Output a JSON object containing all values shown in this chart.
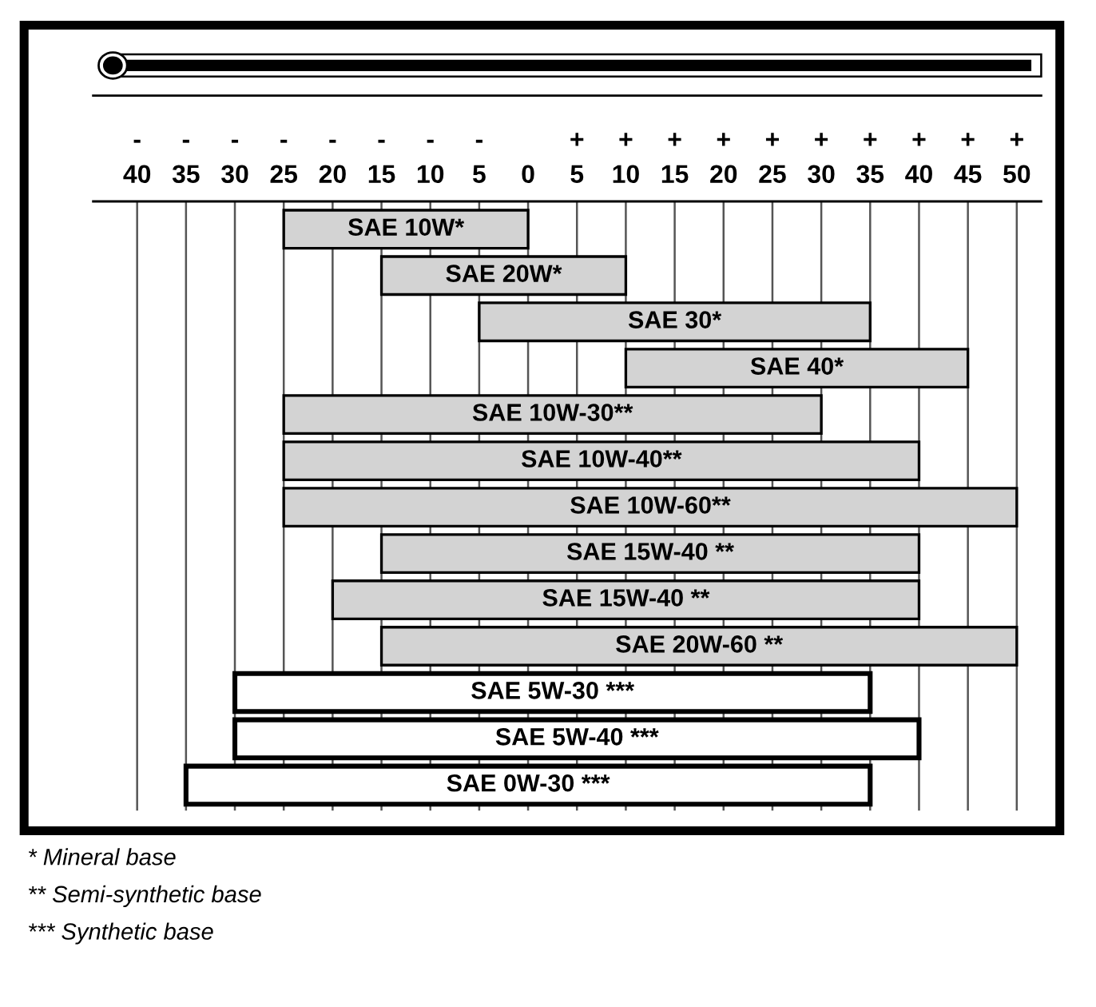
{
  "chart_data": {
    "type": "bar",
    "orientation": "horizontal",
    "categories": [
      "SAE 10W*",
      "SAE 20W*",
      "SAE 30*",
      "SAE 40*",
      "SAE 10W-30**",
      "SAE 10W-40**",
      "SAE 10W-60**",
      "SAE 15W-40 **",
      "SAE 15W-40 **",
      "SAE 20W-60 **",
      "SAE 5W-30 ***",
      "SAE 5W-40 ***",
      "SAE 0W-30 ***"
    ],
    "base": [
      -25,
      -15,
      -5,
      10,
      -25,
      -25,
      -25,
      -15,
      -20,
      -15,
      -30,
      -30,
      -35
    ],
    "values": [
      25,
      25,
      40,
      35,
      55,
      65,
      75,
      55,
      60,
      65,
      65,
      70,
      70
    ],
    "colors": [
      "#d3d3d3",
      "#d3d3d3",
      "#d3d3d3",
      "#d3d3d3",
      "#d3d3d3",
      "#d3d3d3",
      "#d3d3d3",
      "#d3d3d3",
      "#d3d3d3",
      "#d3d3d3",
      "#ffffff",
      "#ffffff",
      "#ffffff"
    ],
    "xlim": [
      -44.5,
      52.5
    ],
    "xticks": [
      {
        "value": -40,
        "label": "-\n40"
      },
      {
        "value": -35,
        "label": "-\n35"
      },
      {
        "value": -30,
        "label": "-\n30"
      },
      {
        "value": -25,
        "label": "-\n25"
      },
      {
        "value": -20,
        "label": "-\n20"
      },
      {
        "value": -15,
        "label": "-\n15"
      },
      {
        "value": -10,
        "label": "-\n10"
      },
      {
        "value": -5,
        "label": "-\n5"
      },
      {
        "value": 0,
        "label": "0"
      },
      {
        "value": 5,
        "label": "+\n5"
      },
      {
        "value": 10,
        "label": "+\n10"
      },
      {
        "value": 15,
        "label": "+\n15"
      },
      {
        "value": 20,
        "label": "+\n20"
      },
      {
        "value": 25,
        "label": "+\n25"
      },
      {
        "value": 30,
        "label": "+\n30"
      },
      {
        "value": 35,
        "label": "+\n35"
      },
      {
        "value": 40,
        "label": "+\n40"
      },
      {
        "value": 45,
        "label": "+\n45"
      },
      {
        "value": 50,
        "label": "+\n50"
      }
    ],
    "grid": "x",
    "tick_labels": "x",
    "annotations": [
      "* Mineral base",
      "** Semi-synthetic base",
      "*** Synthetic base"
    ]
  }
}
